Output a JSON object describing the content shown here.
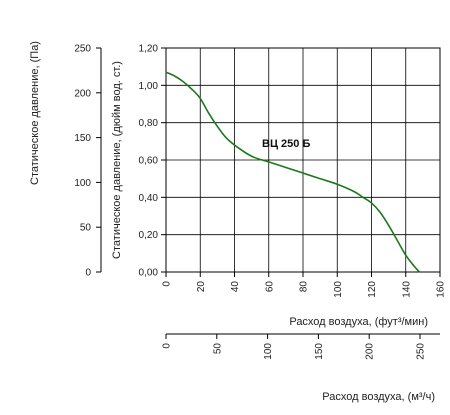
{
  "chart_data": {
    "type": "line",
    "series": [
      {
        "name": "ВЦ 250 Б",
        "x": [
          0,
          5,
          10,
          15,
          20,
          25,
          30,
          35,
          40,
          50,
          60,
          70,
          80,
          90,
          100,
          110,
          115,
          120,
          125,
          130,
          135,
          140,
          145,
          148
        ],
        "y": [
          1.07,
          1.05,
          1.02,
          0.98,
          0.93,
          0.85,
          0.78,
          0.72,
          0.68,
          0.62,
          0.59,
          0.56,
          0.53,
          0.5,
          0.47,
          0.43,
          0.4,
          0.37,
          0.32,
          0.25,
          0.17,
          0.09,
          0.03,
          0.0
        ],
        "color": "#1a7a1a"
      }
    ],
    "x_axis": {
      "label": "Расход воздуха, (фут³/мин)",
      "ticks": [
        "0",
        "20",
        "40",
        "60",
        "80",
        "100",
        "120",
        "140",
        "160"
      ],
      "range": [
        0,
        160
      ]
    },
    "y_axis": {
      "label": "Статическое давление, (дюйм вод. ст.)",
      "ticks": [
        "0,00",
        "0,20",
        "0,40",
        "0,60",
        "0,80",
        "1,00",
        "1,20"
      ],
      "range": [
        0,
        1.2
      ]
    },
    "secondary_y_axis": {
      "label": "Статическое давление, (Па)",
      "ticks": [
        "0",
        "50",
        "100",
        "150",
        "200",
        "250"
      ],
      "range": [
        0,
        250
      ]
    },
    "secondary_x_axis": {
      "label": "Расход воздуха, (м³/ч)",
      "ticks": [
        "0",
        "50",
        "100",
        "150",
        "200",
        "250"
      ],
      "range": [
        0,
        250
      ]
    },
    "grid": true
  }
}
